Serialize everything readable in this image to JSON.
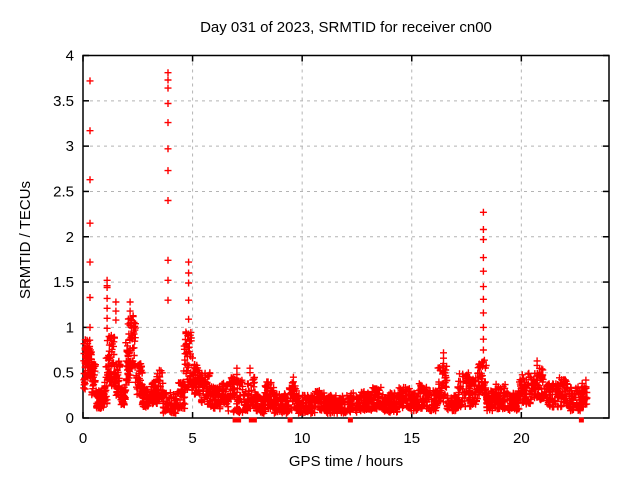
{
  "chart_data": {
    "type": "scatter",
    "title": "Day 031 of 2023, SRMTID for receiver cn00",
    "xlabel": "GPS time / hours",
    "ylabel": "SRMTID / TECUs",
    "xlim": [
      0,
      24
    ],
    "ylim": [
      0,
      4
    ],
    "xticks": [
      0,
      5,
      10,
      15,
      20
    ],
    "yticks": [
      0,
      0.5,
      1,
      1.5,
      2,
      2.5,
      3,
      3.5,
      4
    ],
    "grid": true,
    "legend": "none",
    "marker": "plus",
    "marker_color": "#ff0000",
    "grid_color": "#b4b4b4",
    "border_color": "#000000",
    "seed": 20230131,
    "dense_bins": [
      [
        0.02,
        0.12,
        0.3,
        0.88,
        25
      ],
      [
        0.1,
        0.4,
        0.45,
        0.88,
        55
      ],
      [
        0.4,
        0.6,
        0.25,
        0.6,
        35
      ],
      [
        0.6,
        0.95,
        0.1,
        0.32,
        50
      ],
      [
        0.95,
        1.1,
        0.15,
        0.4,
        20
      ],
      [
        1.05,
        1.45,
        0.35,
        0.92,
        60
      ],
      [
        1.45,
        1.7,
        0.25,
        0.65,
        35
      ],
      [
        1.7,
        1.95,
        0.12,
        0.35,
        35
      ],
      [
        1.95,
        2.15,
        0.35,
        0.85,
        30
      ],
      [
        2.05,
        2.4,
        0.55,
        1.13,
        50
      ],
      [
        2.4,
        2.7,
        0.25,
        0.6,
        40
      ],
      [
        2.7,
        3.1,
        0.12,
        0.35,
        50
      ],
      [
        3.1,
        3.4,
        0.15,
        0.4,
        40
      ],
      [
        3.35,
        3.65,
        0.2,
        0.55,
        40
      ],
      [
        3.65,
        4.3,
        0.05,
        0.28,
        55
      ],
      [
        4.3,
        4.65,
        0.1,
        0.4,
        40
      ],
      [
        4.6,
        5.0,
        0.3,
        0.95,
        55
      ],
      [
        5.0,
        5.4,
        0.25,
        0.6,
        45
      ],
      [
        5.4,
        5.8,
        0.15,
        0.5,
        50
      ],
      [
        5.8,
        6.3,
        0.1,
        0.35,
        55
      ],
      [
        6.3,
        6.6,
        0.15,
        0.4,
        35
      ],
      [
        6.6,
        7.3,
        0.05,
        0.45,
        70
      ],
      [
        7.3,
        7.6,
        0.08,
        0.3,
        30
      ],
      [
        7.5,
        7.9,
        0.1,
        0.45,
        40
      ],
      [
        7.9,
        8.3,
        0.05,
        0.25,
        45
      ],
      [
        8.3,
        8.7,
        0.1,
        0.4,
        45
      ],
      [
        8.7,
        9.4,
        0.05,
        0.28,
        70
      ],
      [
        9.4,
        9.75,
        0.08,
        0.4,
        35
      ],
      [
        9.75,
        10.6,
        0.05,
        0.25,
        85
      ],
      [
        10.6,
        11.1,
        0.08,
        0.32,
        50
      ],
      [
        11.1,
        12.1,
        0.05,
        0.25,
        100
      ],
      [
        12.1,
        12.6,
        0.06,
        0.28,
        50
      ],
      [
        12.6,
        13.2,
        0.08,
        0.3,
        60
      ],
      [
        13.2,
        13.6,
        0.1,
        0.36,
        40
      ],
      [
        13.6,
        14.4,
        0.06,
        0.28,
        80
      ],
      [
        14.4,
        14.9,
        0.1,
        0.34,
        50
      ],
      [
        14.9,
        15.3,
        0.08,
        0.3,
        40
      ],
      [
        15.3,
        15.8,
        0.1,
        0.38,
        50
      ],
      [
        15.8,
        16.2,
        0.08,
        0.32,
        40
      ],
      [
        16.2,
        16.6,
        0.15,
        0.6,
        45
      ],
      [
        16.6,
        17.1,
        0.08,
        0.25,
        50
      ],
      [
        17.1,
        17.7,
        0.12,
        0.5,
        60
      ],
      [
        17.7,
        18.0,
        0.15,
        0.45,
        30
      ],
      [
        18.0,
        18.4,
        0.25,
        0.65,
        50
      ],
      [
        18.4,
        18.8,
        0.08,
        0.3,
        45
      ],
      [
        18.8,
        19.4,
        0.1,
        0.38,
        60
      ],
      [
        19.4,
        19.9,
        0.08,
        0.3,
        50
      ],
      [
        19.9,
        20.5,
        0.15,
        0.5,
        60
      ],
      [
        20.5,
        21.0,
        0.2,
        0.55,
        50
      ],
      [
        21.0,
        21.7,
        0.12,
        0.38,
        70
      ],
      [
        21.7,
        22.1,
        0.12,
        0.45,
        45
      ],
      [
        22.1,
        22.7,
        0.08,
        0.35,
        60
      ],
      [
        22.7,
        23.0,
        0.12,
        0.42,
        35
      ]
    ],
    "spike_columns": [
      {
        "x": 0.32,
        "y": [
          3.72,
          3.17,
          2.63,
          2.15,
          1.72,
          1.33,
          1.0
        ]
      },
      {
        "x": 1.1,
        "y": [
          1.52,
          1.46,
          1.44,
          1.32,
          1.21,
          1.1,
          0.99
        ]
      },
      {
        "x": 1.5,
        "y": [
          1.28,
          1.18,
          1.08
        ]
      },
      {
        "x": 2.15,
        "y": [
          1.28,
          1.18,
          1.1,
          1.05
        ]
      },
      {
        "x": 3.88,
        "y": [
          3.81,
          3.73,
          3.64,
          3.47,
          3.26,
          2.97,
          2.73,
          2.4,
          1.74,
          1.52,
          1.3
        ]
      },
      {
        "x": 4.82,
        "y": [
          1.72,
          1.6,
          1.49,
          1.3,
          1.09
        ]
      },
      {
        "x": 7.02,
        "y": [
          0.55,
          0.48
        ]
      },
      {
        "x": 7.62,
        "y": [
          0.55,
          0.5
        ]
      },
      {
        "x": 9.6,
        "y": [
          0.45,
          0.4
        ]
      },
      {
        "x": 16.45,
        "y": [
          0.72,
          0.66,
          0.6
        ]
      },
      {
        "x": 18.27,
        "y": [
          2.27,
          2.08,
          1.97,
          1.77,
          1.62,
          1.45,
          1.31,
          1.16,
          1.0,
          0.87,
          0.75,
          0.62
        ]
      },
      {
        "x": 20.72,
        "y": [
          0.63,
          0.58
        ]
      }
    ],
    "zero_points": [
      6.94,
      7.1,
      7.68,
      7.82,
      9.45,
      12.2,
      22.74
    ]
  }
}
